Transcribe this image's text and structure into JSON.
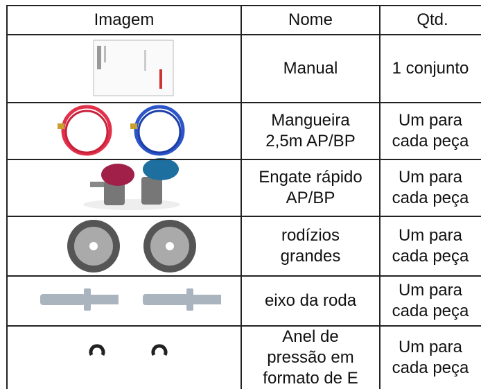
{
  "table": {
    "header": [
      "Imagem",
      "Nome",
      "Qtd."
    ],
    "rows": [
      [
        "Manual",
        "1 conjunto"
      ],
      [
        "Mangueira\n2,5m AP/BP",
        "Um para\ncada peça"
      ],
      [
        "Engate rápido\nAP/BP",
        "Um para\ncada peça"
      ],
      [
        "rodízios\ngrandes",
        "Um para\ncada peça"
      ],
      [
        "eixo da roda",
        "Um para\ncada peça"
      ],
      [
        "Anel de\npressão em\nformato de E",
        "Um para\ncada peça"
      ]
    ]
  }
}
